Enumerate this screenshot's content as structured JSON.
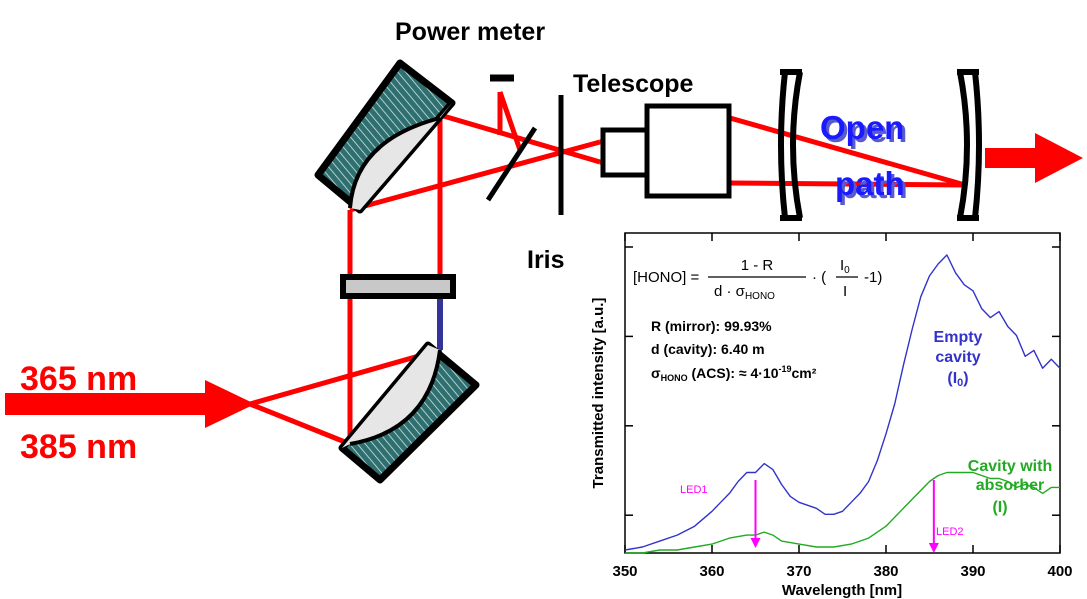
{
  "labels": {
    "power_meter": "Power meter",
    "telescope": "Telescope",
    "iris": "Iris",
    "open": "Open",
    "path": "path",
    "wl_365": "365 nm",
    "wl_385": "385 nm"
  },
  "inset": {
    "formula_lhs": "[HONO] =",
    "formula_num": "1 - R",
    "formula_den_d": "d · σ",
    "formula_den_sub": "HONO",
    "formula_mid": "· (",
    "formula_i0": "I",
    "formula_i0_sub": "0",
    "formula_i": "I",
    "formula_tail": "-1)",
    "param_r": "R (mirror): 99.93%",
    "param_d": "d (cavity):  6.40 m",
    "param_sigma_sym": "σ",
    "param_sigma_sub": "HONO",
    "param_sigma_rest": " (ACS): ≈ 4·10",
    "param_sigma_exp": "-19",
    "param_sigma_unit": "cm²",
    "empty_line1": "Empty",
    "empty_line2": "cavity",
    "empty_line3": "(I",
    "empty_line3_sub": "0",
    "empty_line3_end": ")",
    "absorber_line1": "Cavity with",
    "absorber_line2": "absorber",
    "absorber_line3": "(I)",
    "led1": "LED1",
    "led2": "LED2"
  },
  "colors": {
    "beam": "#ff0000",
    "empty_cavity": "#3333cc",
    "with_absorber": "#22aa22",
    "led_marker": "#ff00ff",
    "open_path_text": "#1a1aff"
  },
  "chart_data": {
    "type": "line",
    "xlabel": "Wavelength [nm]",
    "ylabel": "Transmitted intensity [a.u.]",
    "xlim": [
      350,
      400
    ],
    "x_ticks": [
      350,
      360,
      370,
      380,
      390,
      400
    ],
    "led_markers": [
      365,
      385.5
    ],
    "series": [
      {
        "name": "Empty cavity (I0)",
        "x": [
          350,
          352,
          354,
          356,
          358,
          360,
          361,
          362,
          363,
          364,
          365,
          366,
          367,
          368,
          369,
          370,
          371,
          372,
          373,
          374,
          375,
          376,
          377,
          378,
          379,
          380,
          381,
          382,
          383,
          384,
          385,
          386,
          387,
          388,
          389,
          390,
          391,
          392,
          393,
          394,
          395,
          396,
          397,
          398,
          399,
          400
        ],
        "values": [
          0.01,
          0.02,
          0.04,
          0.06,
          0.09,
          0.14,
          0.17,
          0.2,
          0.24,
          0.27,
          0.27,
          0.3,
          0.28,
          0.23,
          0.19,
          0.17,
          0.16,
          0.15,
          0.13,
          0.13,
          0.14,
          0.17,
          0.2,
          0.24,
          0.31,
          0.4,
          0.5,
          0.63,
          0.75,
          0.86,
          0.93,
          0.97,
          1.0,
          0.94,
          0.9,
          0.88,
          0.82,
          0.79,
          0.81,
          0.76,
          0.73,
          0.66,
          0.68,
          0.62,
          0.65,
          0.62
        ]
      },
      {
        "name": "Cavity with absorber (I)",
        "x": [
          350,
          352,
          354,
          356,
          358,
          360,
          362,
          364,
          365,
          366,
          367,
          368,
          370,
          372,
          374,
          376,
          378,
          380,
          382,
          384,
          385,
          386,
          387,
          388,
          389,
          390,
          391,
          392,
          393,
          394,
          395,
          396,
          397,
          398,
          399,
          400
        ],
        "values": [
          0.0,
          0.0,
          0.01,
          0.01,
          0.02,
          0.03,
          0.05,
          0.06,
          0.06,
          0.07,
          0.06,
          0.04,
          0.03,
          0.02,
          0.02,
          0.03,
          0.05,
          0.09,
          0.15,
          0.21,
          0.24,
          0.26,
          0.27,
          0.27,
          0.27,
          0.27,
          0.26,
          0.25,
          0.25,
          0.24,
          0.22,
          0.23,
          0.22,
          0.2,
          0.22,
          0.22
        ]
      }
    ]
  }
}
